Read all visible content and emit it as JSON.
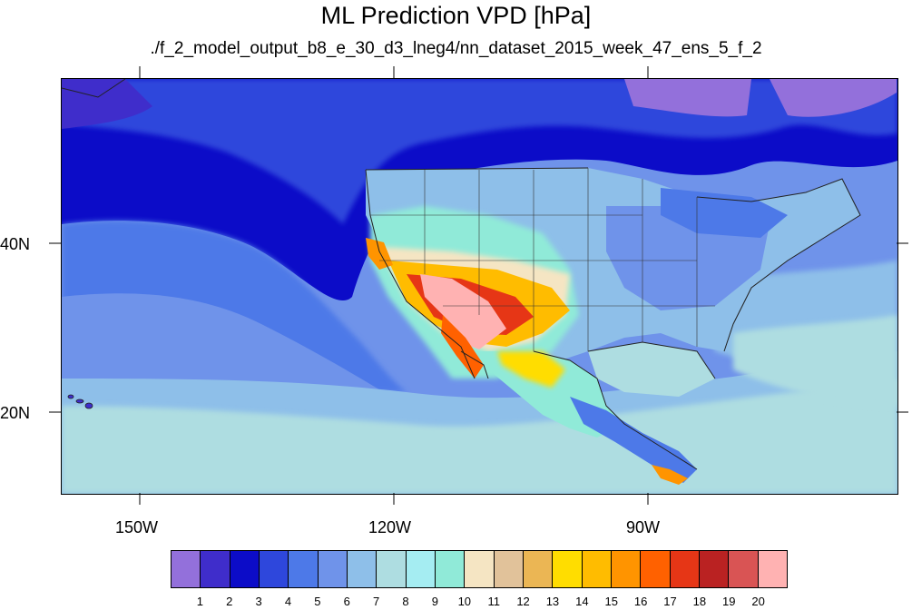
{
  "title": "ML Prediction VPD [hPa]",
  "subtitle": "./f_2_model_output_b8_e_30_d3_lneg4/nn_dataset_2015_week_47_ens_5_f_2",
  "map": {
    "projection": "cylindrical-equidistant",
    "lon_range": [
      -160,
      -62
    ],
    "lat_range": [
      10,
      59
    ],
    "lon_ticks": [
      "150W",
      "120W",
      "90W"
    ],
    "lat_ticks": [
      "40N",
      "20N"
    ],
    "region": "North America, continental US, Mexico, Central America, eastern Pacific"
  },
  "colorbar": {
    "labels": [
      "1",
      "2",
      "3",
      "4",
      "5",
      "6",
      "7",
      "8",
      "9",
      "10",
      "11",
      "12",
      "13",
      "14",
      "15",
      "16",
      "17",
      "18",
      "19",
      "20"
    ],
    "colors": [
      "#9370DB",
      "#3F2DCB",
      "#0C0CC8",
      "#2E47DC",
      "#4D79E8",
      "#6F93EA",
      "#8EBFE9",
      "#AEDDE1",
      "#A5EDF2",
      "#90EAD8",
      "#F5E5C3",
      "#E1C29A",
      "#EBB654",
      "#FFDD00",
      "#FFBC00",
      "#FF9400",
      "#FF6100",
      "#E63616",
      "#BA2222",
      "#D95454",
      "#FFB2B2"
    ]
  }
}
